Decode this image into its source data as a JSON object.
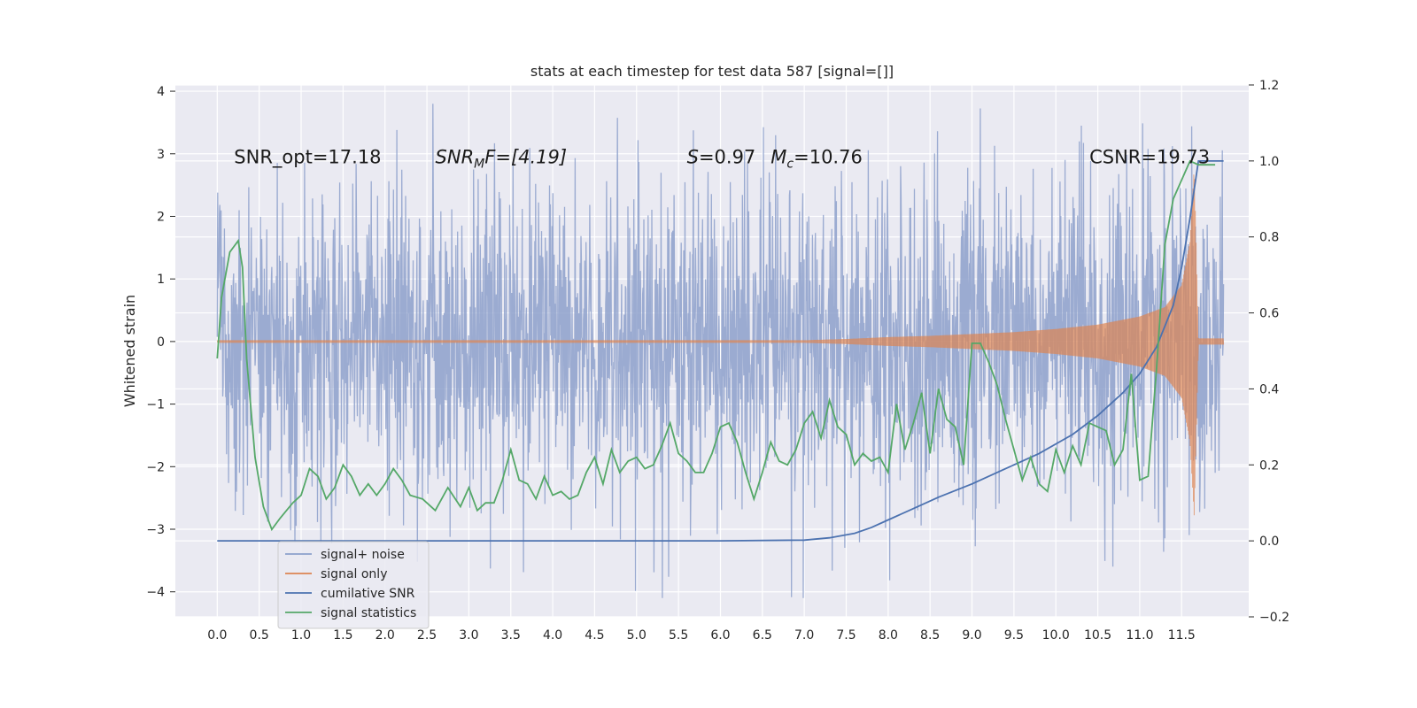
{
  "chart_data": {
    "type": "line",
    "title": "stats at each timestep for test data 587 [signal=[]]",
    "ylabel": "Whitened strain",
    "xlabel": "",
    "xlim": [
      -0.5,
      12.3
    ],
    "ylim": [
      -4.4,
      4.1
    ],
    "ylim_right": [
      -0.2,
      1.2
    ],
    "x_ticks": [
      0.0,
      0.5,
      1.0,
      1.5,
      2.0,
      2.5,
      3.0,
      3.5,
      4.0,
      4.5,
      5.0,
      5.5,
      6.0,
      6.5,
      7.0,
      7.5,
      8.0,
      8.5,
      9.0,
      9.5,
      10.0,
      10.5,
      11.0,
      11.5
    ],
    "x_tick_labels": [
      "0.0",
      "0.5",
      "1.0",
      "1.5",
      "2.0",
      "2.5",
      "3.0",
      "3.5",
      "4.0",
      "4.5",
      "5.0",
      "5.5",
      "6.0",
      "6.5",
      "7.0",
      "7.5",
      "8.0",
      "8.5",
      "9.0",
      "9.5",
      "10.0",
      "10.5",
      "11.0",
      "11.5"
    ],
    "y_ticks": [
      4,
      3,
      2,
      1,
      0,
      -1,
      -2,
      -3,
      -4
    ],
    "y_tick_labels": [
      "4",
      "3",
      "2",
      "1",
      "0",
      "−1",
      "−2",
      "−3",
      "−4"
    ],
    "y_ticks_right": [
      1.2,
      1.0,
      0.8,
      0.6,
      0.4,
      0.2,
      0.0,
      -0.2
    ],
    "y_tick_labels_right": [
      "1.2",
      "1.0",
      "0.8",
      "0.6",
      "0.4",
      "0.2",
      "0.0",
      "−0.2"
    ],
    "grid": true,
    "legend_position": "lower-left",
    "annotations": {
      "snr_opt": "SNR_opt=17.18",
      "snr_mf_sym": "SNR",
      "snr_mf_sub": "M",
      "snr_mf_rest": "F=[4.19]",
      "s_sym": "S",
      "s_rest": "=0.97",
      "mc_sym": "M",
      "mc_sub": "c",
      "mc_rest": "=10.76",
      "csnr": "CSNR=19.73"
    },
    "series": [
      {
        "name": "signal+ noise",
        "axis": "left",
        "color": "#8da0cb",
        "description_envelope": {
          "x_range": [
            0.0,
            12.0
          ],
          "typical_amplitude": 1.3,
          "peak_max": 3.8,
          "peak_min": -4.1
        }
      },
      {
        "name": "signal only",
        "axis": "left",
        "color": "#dd8452",
        "envelope": {
          "x": [
            0.0,
            7.0,
            7.5,
            8.0,
            8.5,
            9.0,
            9.5,
            10.0,
            10.5,
            11.0,
            11.3,
            11.5,
            11.6,
            11.65,
            11.7,
            12.0
          ],
          "amp": [
            0.02,
            0.02,
            0.04,
            0.07,
            0.09,
            0.12,
            0.15,
            0.2,
            0.27,
            0.4,
            0.55,
            0.9,
            1.6,
            2.8,
            0.05,
            0.05
          ]
        }
      },
      {
        "name": "cumilative SNR",
        "axis": "right",
        "color": "#4c72b0",
        "x": [
          0.0,
          6.0,
          7.0,
          7.3,
          7.6,
          7.8,
          8.0,
          8.3,
          8.6,
          9.0,
          9.4,
          9.8,
          10.2,
          10.5,
          10.8,
          11.0,
          11.2,
          11.4,
          11.5,
          11.6,
          11.7,
          12.0
        ],
        "y": [
          0.0,
          0.0,
          0.002,
          0.008,
          0.02,
          0.035,
          0.055,
          0.085,
          0.115,
          0.15,
          0.19,
          0.23,
          0.28,
          0.33,
          0.39,
          0.44,
          0.51,
          0.62,
          0.72,
          0.85,
          1.0,
          1.0
        ]
      },
      {
        "name": "signal statistics",
        "axis": "right",
        "color": "#55a868",
        "x": [
          0.0,
          0.05,
          0.15,
          0.25,
          0.3,
          0.35,
          0.45,
          0.55,
          0.65,
          0.75,
          0.9,
          1.0,
          1.1,
          1.2,
          1.3,
          1.4,
          1.5,
          1.6,
          1.7,
          1.8,
          1.9,
          2.0,
          2.1,
          2.2,
          2.3,
          2.45,
          2.6,
          2.75,
          2.9,
          3.0,
          3.1,
          3.2,
          3.3,
          3.4,
          3.5,
          3.6,
          3.7,
          3.8,
          3.9,
          4.0,
          4.1,
          4.2,
          4.3,
          4.4,
          4.5,
          4.6,
          4.7,
          4.8,
          4.9,
          5.0,
          5.1,
          5.2,
          5.3,
          5.4,
          5.5,
          5.6,
          5.7,
          5.8,
          5.9,
          6.0,
          6.1,
          6.2,
          6.3,
          6.4,
          6.5,
          6.6,
          6.7,
          6.8,
          6.9,
          7.0,
          7.1,
          7.2,
          7.3,
          7.4,
          7.5,
          7.6,
          7.7,
          7.8,
          7.9,
          8.0,
          8.1,
          8.2,
          8.3,
          8.4,
          8.5,
          8.6,
          8.7,
          8.8,
          8.9,
          9.0,
          9.1,
          9.2,
          9.3,
          9.4,
          9.5,
          9.6,
          9.7,
          9.8,
          9.9,
          10.0,
          10.1,
          10.2,
          10.3,
          10.4,
          10.5,
          10.6,
          10.7,
          10.8,
          10.9,
          11.0,
          11.1,
          11.2,
          11.3,
          11.4,
          11.5,
          11.6,
          11.7,
          11.8,
          11.9
        ],
        "y": [
          0.48,
          0.64,
          0.76,
          0.79,
          0.72,
          0.48,
          0.22,
          0.09,
          0.03,
          0.06,
          0.1,
          0.12,
          0.19,
          0.17,
          0.11,
          0.14,
          0.2,
          0.17,
          0.12,
          0.15,
          0.12,
          0.15,
          0.19,
          0.16,
          0.12,
          0.11,
          0.08,
          0.14,
          0.09,
          0.14,
          0.08,
          0.1,
          0.1,
          0.16,
          0.24,
          0.16,
          0.15,
          0.11,
          0.17,
          0.12,
          0.13,
          0.11,
          0.12,
          0.18,
          0.22,
          0.15,
          0.24,
          0.18,
          0.21,
          0.22,
          0.19,
          0.2,
          0.25,
          0.31,
          0.23,
          0.21,
          0.18,
          0.18,
          0.23,
          0.3,
          0.31,
          0.26,
          0.18,
          0.11,
          0.18,
          0.26,
          0.21,
          0.2,
          0.24,
          0.31,
          0.34,
          0.27,
          0.37,
          0.3,
          0.28,
          0.2,
          0.23,
          0.21,
          0.22,
          0.18,
          0.36,
          0.24,
          0.31,
          0.39,
          0.23,
          0.4,
          0.32,
          0.3,
          0.2,
          0.52,
          0.52,
          0.47,
          0.41,
          0.32,
          0.24,
          0.16,
          0.22,
          0.15,
          0.13,
          0.24,
          0.18,
          0.25,
          0.2,
          0.31,
          0.3,
          0.29,
          0.2,
          0.24,
          0.44,
          0.16,
          0.17,
          0.45,
          0.78,
          0.9,
          0.95,
          1.0,
          0.99,
          0.99,
          0.99
        ]
      }
    ]
  }
}
